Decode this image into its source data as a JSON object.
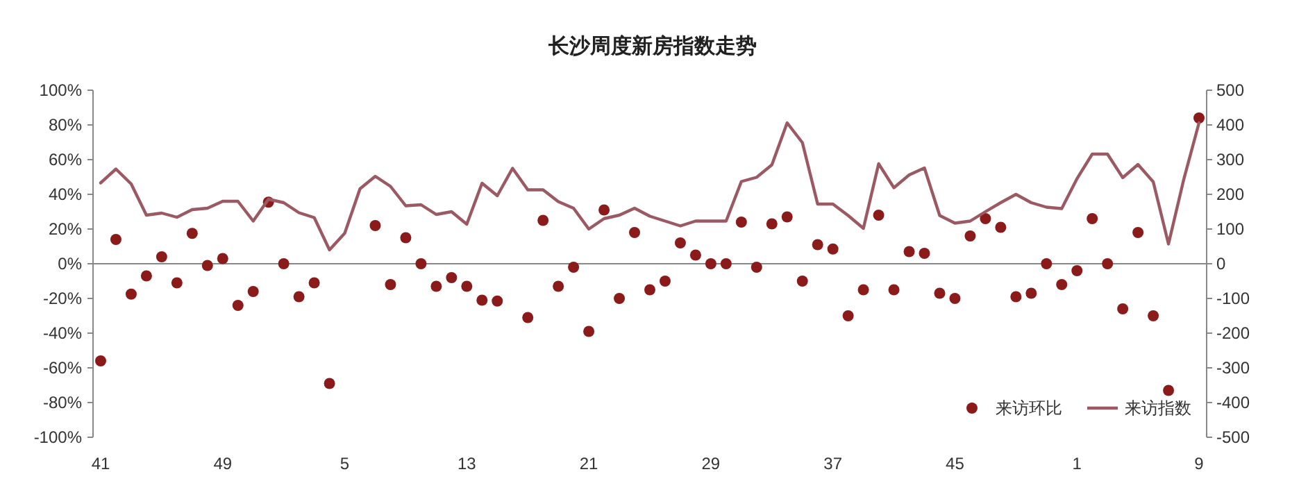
{
  "chart_data": {
    "type": "line",
    "title": "长沙周度新房指数走势",
    "categories": [
      "41",
      null,
      null,
      null,
      null,
      null,
      null,
      null,
      "49",
      null,
      null,
      null,
      null,
      null,
      null,
      null,
      "5",
      null,
      null,
      null,
      null,
      null,
      null,
      null,
      "13",
      null,
      null,
      null,
      null,
      null,
      null,
      null,
      "21",
      null,
      null,
      null,
      null,
      null,
      null,
      null,
      "29",
      null,
      null,
      null,
      null,
      null,
      null,
      null,
      "37",
      null,
      null,
      null,
      null,
      null,
      null,
      null,
      "45",
      null,
      null,
      null,
      null,
      null,
      null,
      null,
      "1",
      null,
      null,
      null,
      null,
      null,
      null,
      null,
      "9"
    ],
    "series": [
      {
        "name": "来访环比",
        "type": "scatter",
        "color": "#8b1a1a",
        "marker": "circle",
        "values": [
          -56,
          14,
          -17.5,
          -7,
          4,
          -11,
          17.5,
          -1,
          3,
          -24,
          -16,
          35.5,
          0,
          -19,
          -11,
          -69,
          null,
          null,
          22,
          -12,
          15,
          0,
          -13,
          -8,
          -13,
          -21,
          -21.5,
          null,
          -31,
          25,
          -13,
          -2,
          -39,
          31,
          -20,
          18,
          -15,
          -10,
          12,
          5,
          0,
          0,
          24,
          -2,
          23,
          27,
          -10,
          11,
          8.5,
          -30,
          -15,
          28,
          -15,
          7,
          6,
          -17,
          -20,
          16,
          26,
          21,
          -19,
          -17,
          0,
          -12,
          -4,
          26,
          0,
          -26,
          18,
          -30,
          -73,
          null,
          84
        ]
      },
      {
        "name": "来访指数",
        "type": "line",
        "axis": "y2",
        "color": "#9b5a63",
        "marker": "none",
        "line_style": "solid",
        "values": [
          233,
          273,
          230,
          140,
          146,
          134,
          156,
          160,
          180,
          180,
          123,
          186,
          176,
          147,
          133,
          40,
          88,
          216,
          252,
          223,
          167,
          170,
          142,
          150,
          114,
          232,
          196,
          275,
          213,
          213,
          179,
          160,
          100,
          130,
          140,
          160,
          137,
          123,
          109,
          123,
          123,
          123,
          237,
          249,
          285,
          406,
          349,
          172,
          172,
          139,
          102,
          288,
          219,
          256,
          276,
          139,
          117,
          123,
          150,
          176,
          200,
          176,
          163,
          159,
          245,
          316,
          316,
          248,
          286,
          236,
          57,
          243,
          406
        ]
      }
    ],
    "ylim": [
      -100,
      100
    ],
    "yticks": [
      {
        "value": -100,
        "label": "-100%"
      },
      {
        "value": -80,
        "label": "-80%"
      },
      {
        "value": -60,
        "label": "-60%"
      },
      {
        "value": -40,
        "label": "-40%"
      },
      {
        "value": -20,
        "label": "-20%"
      },
      {
        "value": 0,
        "label": "0%"
      },
      {
        "value": 20,
        "label": "20%"
      },
      {
        "value": 40,
        "label": "40%"
      },
      {
        "value": 60,
        "label": "60%"
      },
      {
        "value": 80,
        "label": "80%"
      },
      {
        "value": 100,
        "label": "100%"
      }
    ],
    "y2lim": [
      -500,
      500
    ],
    "y2ticks": [
      -500,
      -400,
      -300,
      -200,
      -100,
      0,
      100,
      200,
      300,
      400,
      500
    ],
    "legend": "bottom right"
  }
}
